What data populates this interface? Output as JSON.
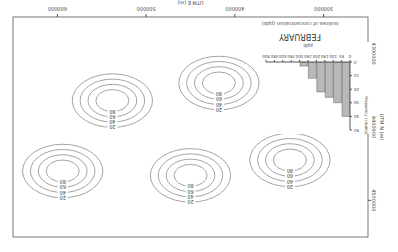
{
  "map": {
    "title": "FEBRUARY",
    "legend_text": "Isolines of concentration (ppb)",
    "x_label": "UTM E (m)",
    "y_label": "UTM N (m)",
    "xlim": [
      250000,
      650000
    ],
    "xticks": [
      300000,
      400000,
      500000,
      600000
    ],
    "ylim": [
      4250000,
      4550000
    ],
    "yticks": [
      4300000,
      4400000,
      4500000
    ],
    "contour_levels": [
      20,
      40,
      60,
      80
    ]
  },
  "chart_data": {
    "type": "histogram",
    "x_label": "ppb",
    "y_label": "Frequency (counts)",
    "bins": [
      0,
      50,
      100,
      150,
      200,
      250,
      300,
      350,
      400,
      450,
      500
    ],
    "counts": [
      40,
      30,
      26,
      22,
      12,
      3,
      0,
      0,
      0,
      0
    ],
    "xlim": [
      0,
      500
    ],
    "xticks": [
      0,
      50,
      100,
      150,
      200,
      250,
      300,
      350,
      400,
      450,
      500
    ],
    "ylim": [
      0,
      50
    ],
    "yticks": [
      0,
      10,
      20,
      30,
      40,
      50
    ],
    "color": "#b8b8b8"
  }
}
